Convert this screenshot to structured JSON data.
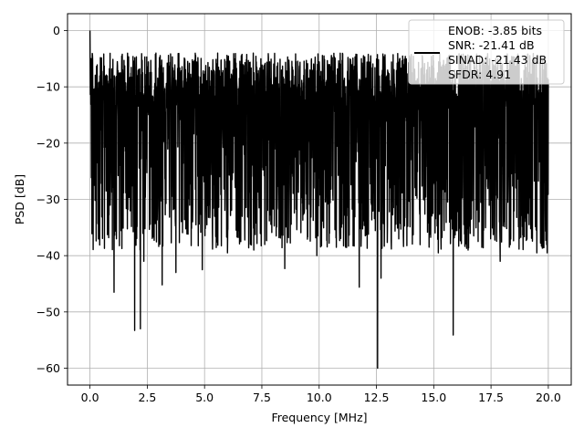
{
  "chart_data": {
    "type": "line",
    "title": "",
    "xlabel": "Frequency [MHz]",
    "ylabel": "PSD [dB]",
    "xlim": [
      -0.98,
      21.0
    ],
    "ylim": [
      -63.0,
      3.0
    ],
    "xticks": [
      0.0,
      2.5,
      5.0,
      7.5,
      10.0,
      12.5,
      15.0,
      17.5,
      20.0
    ],
    "xtick_labels": [
      "0.0",
      "2.5",
      "5.0",
      "7.5",
      "10.0",
      "12.5",
      "15.0",
      "17.5",
      "20.0"
    ],
    "yticks": [
      0,
      -10,
      -20,
      -30,
      -40,
      -50,
      -60
    ],
    "ytick_labels": [
      "0",
      "−10",
      "−20",
      "−30",
      "−40",
      "−50",
      "−60"
    ],
    "grid": true,
    "legend_position": "top-right",
    "series": [
      {
        "name": "",
        "color": "#000000",
        "description_of_shape": "dense noise floor",
        "noise_band_top": -8,
        "noise_band_bottom": -35,
        "x_range": [
          0.0,
          20.0
        ],
        "peaks": [
          {
            "x": 0.0,
            "y": 0.0
          },
          {
            "x": 0.05,
            "y": -5.0
          },
          {
            "x": 0.12,
            "y": -9.0
          }
        ],
        "dips": [
          {
            "x": 1.05,
            "y": -46.5
          },
          {
            "x": 1.95,
            "y": -53.3
          },
          {
            "x": 2.2,
            "y": -53.0
          },
          {
            "x": 2.35,
            "y": -41.0
          },
          {
            "x": 3.15,
            "y": -45.2
          },
          {
            "x": 3.75,
            "y": -43.0
          },
          {
            "x": 4.9,
            "y": -42.5
          },
          {
            "x": 6.0,
            "y": -39.5
          },
          {
            "x": 7.0,
            "y": -38.0
          },
          {
            "x": 8.5,
            "y": -42.3
          },
          {
            "x": 9.9,
            "y": -40.0
          },
          {
            "x": 11.75,
            "y": -45.6
          },
          {
            "x": 12.55,
            "y": -60.0
          },
          {
            "x": 12.7,
            "y": -44.0
          },
          {
            "x": 15.2,
            "y": -39.5
          },
          {
            "x": 15.85,
            "y": -54.1
          },
          {
            "x": 16.5,
            "y": -39.0
          },
          {
            "x": 17.9,
            "y": -41.0
          },
          {
            "x": 18.3,
            "y": -38.5
          },
          {
            "x": 19.5,
            "y": -39.5
          },
          {
            "x": 19.95,
            "y": -39.5
          }
        ]
      }
    ],
    "legend_lines": [
      "ENOB: -3.85 bits",
      "SNR: -21.41 dB",
      "SINAD: -21.43 dB",
      "SFDR: 4.91"
    ]
  }
}
